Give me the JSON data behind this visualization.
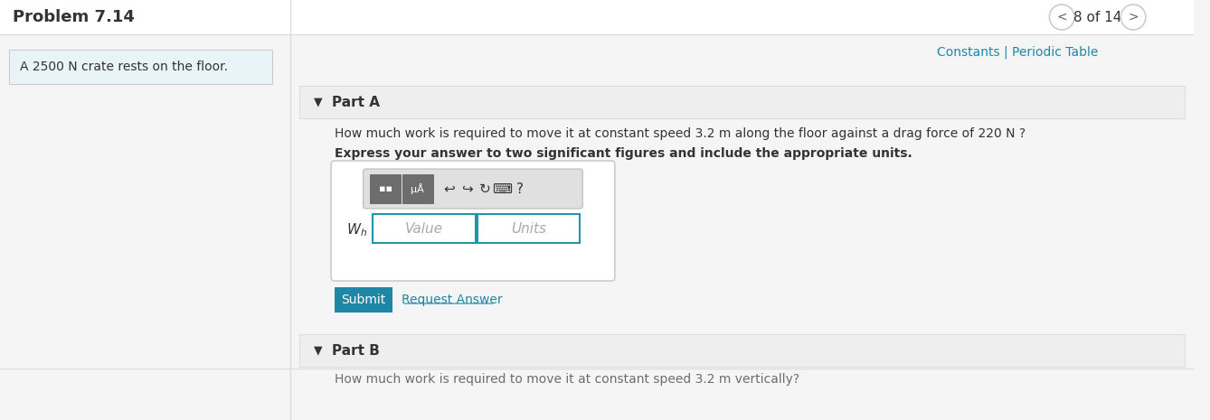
{
  "title": "Problem 7.14",
  "nav_text": "8 of 14",
  "constants_text": "Constants | Periodic Table",
  "problem_statement": "A 2500 N crate rests on the floor.",
  "part_a_label": "Part A",
  "part_a_question": "How much work is required to move it at constant speed 3.2 m along the floor against a drag force of 220 N ?",
  "part_a_instruction": "Express your answer to two significant figures and include the appropriate units.",
  "wh_label": "W",
  "wh_subscript": "h",
  "value_placeholder": "Value",
  "units_placeholder": "Units",
  "submit_text": "Submit",
  "request_answer_text": "Request Answer",
  "part_b_label": "Part B",
  "part_b_question": "How much work is required to move it at constant speed 3.2 m vertically?",
  "bg_color": "#f5f5f5",
  "white": "#ffffff",
  "light_blue_box": "#e8f4f8",
  "teal": "#1e87a5",
  "teal_dark": "#1a7a96",
  "link_color": "#2196a8",
  "border_color": "#cccccc",
  "text_dark": "#333333",
  "text_gray": "#666666",
  "input_border": "#2196a8",
  "toolbar_bg": "#6d6d6d",
  "toolbar_light": "#888888",
  "part_header_bg": "#eeeeee",
  "separator_color": "#dddddd"
}
